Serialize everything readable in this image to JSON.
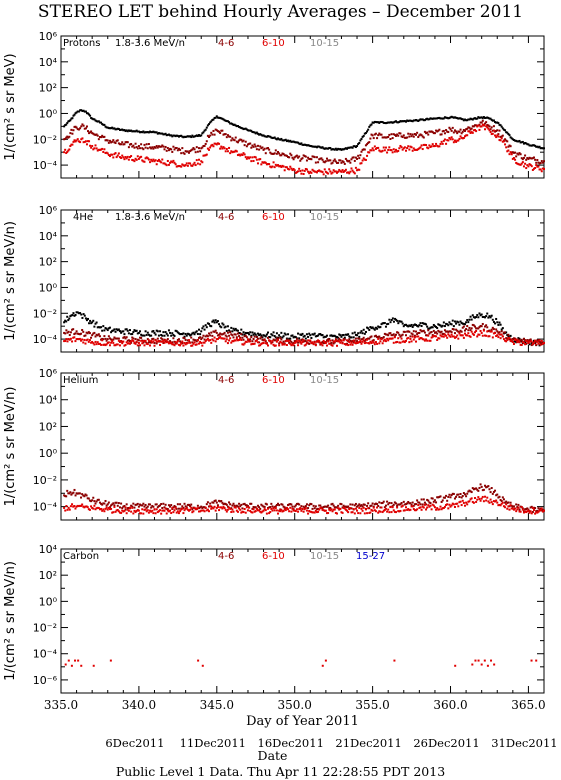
{
  "title": "STEREO LET behind Hourly Averages – December 2011",
  "footer": "Public Level 1 Data. Thu Apr 11 22:28:55 PDT 2013",
  "colors": {
    "lowest_energy": "#000000",
    "4-6": "#8b0000",
    "6-10": "#e00000",
    "10-15": "#888888",
    "15-27": "#0000cc"
  },
  "chart_data": [
    {
      "type": "scatter",
      "panel": "Protons",
      "ylabel": "1/(cm² s sr MeV)",
      "yscale": "log",
      "ylim": [
        1e-05,
        1000000
      ],
      "yticks": [
        "10⁻⁴",
        "10⁻²",
        "10⁰",
        "10²",
        "10⁴",
        "10⁶"
      ],
      "xlim": [
        335,
        366
      ],
      "legend": [
        "Protons",
        "1.8-3.6 MeV/n",
        "4-6",
        "6-10",
        "10-15"
      ],
      "series": [
        {
          "name": "1.8-3.6 MeV/n",
          "x": [
            335.2,
            335.6,
            336,
            336.3,
            336.6,
            337,
            337.5,
            338,
            339,
            340,
            341,
            342,
            343,
            344,
            344.5,
            345,
            345.5,
            346,
            347,
            348,
            349,
            350,
            351,
            352,
            353,
            354,
            355,
            356,
            357,
            358,
            359,
            360,
            360.5,
            361,
            361.5,
            362,
            362.5,
            363,
            363.5,
            364,
            365,
            366
          ],
          "y": [
            0.1,
            0.3,
            1.2,
            1.8,
            1.4,
            0.4,
            0.2,
            0.08,
            0.05,
            0.04,
            0.035,
            0.02,
            0.015,
            0.02,
            0.15,
            0.6,
            0.3,
            0.15,
            0.05,
            0.02,
            0.01,
            0.006,
            0.003,
            0.002,
            0.0015,
            0.003,
            0.2,
            0.2,
            0.25,
            0.3,
            0.4,
            0.5,
            0.4,
            0.3,
            0.4,
            0.5,
            0.4,
            0.2,
            0.05,
            0.01,
            0.004,
            0.002
          ]
        },
        {
          "name": "4-6",
          "x": [
            335.2,
            335.6,
            336,
            336.3,
            336.6,
            337,
            337.5,
            338,
            339,
            340,
            341,
            342,
            343,
            344,
            344.5,
            345,
            345.5,
            346,
            347,
            348,
            349,
            350,
            351,
            352,
            353,
            354,
            355,
            356,
            357,
            358,
            359,
            360,
            360.5,
            361,
            361.5,
            362,
            362.5,
            363,
            363.5,
            364,
            365,
            366
          ],
          "y": [
            0.01,
            0.03,
            0.08,
            0.1,
            0.07,
            0.03,
            0.015,
            0.008,
            0.004,
            0.003,
            0.0025,
            0.0018,
            0.0012,
            0.002,
            0.015,
            0.05,
            0.025,
            0.012,
            0.004,
            0.0015,
            0.0008,
            0.0004,
            0.0003,
            0.0002,
            0.00015,
            0.0003,
            0.02,
            0.015,
            0.02,
            0.02,
            0.03,
            0.06,
            0.04,
            0.06,
            0.1,
            0.2,
            0.1,
            0.05,
            0.01,
            0.001,
            0.0003,
            0.0002
          ]
        },
        {
          "name": "6-10",
          "x": [
            335.2,
            335.6,
            336,
            336.3,
            336.6,
            337,
            337.5,
            338,
            339,
            340,
            341,
            342,
            343,
            344,
            344.5,
            345,
            345.5,
            346,
            347,
            348,
            349,
            350,
            351,
            352,
            353,
            354,
            355,
            356,
            357,
            358,
            359,
            360,
            360.5,
            361,
            361.5,
            362,
            362.5,
            363,
            363.5,
            364,
            365,
            366
          ],
          "y": [
            0.001,
            0.003,
            0.008,
            0.01,
            0.007,
            0.003,
            0.0015,
            0.0008,
            0.0004,
            0.0003,
            0.0002,
            0.00015,
            0.0001,
            0.0002,
            0.0015,
            0.004,
            0.002,
            0.001,
            0.0004,
            0.00015,
            8e-05,
            4e-05,
            3e-05,
            3e-05,
            3e-05,
            4e-05,
            0.002,
            0.0015,
            0.002,
            0.002,
            0.003,
            0.01,
            0.008,
            0.02,
            0.05,
            0.1,
            0.05,
            0.02,
            0.004,
            0.0003,
            8e-05,
            5e-05
          ]
        }
      ]
    },
    {
      "type": "scatter",
      "panel": "4He",
      "ylabel": "1/(cm² s sr MeV/n)",
      "yscale": "log",
      "ylim": [
        1e-05,
        1000000
      ],
      "yticks": [
        "10⁻⁴",
        "10⁻²",
        "10⁰",
        "10²",
        "10⁴",
        "10⁶"
      ],
      "xlim": [
        335,
        366
      ],
      "legend": [
        "4He",
        "1.8-3.6 MeV/n",
        "4-6",
        "6-10",
        "10-15"
      ],
      "series": [
        {
          "name": "1.8-3.6 MeV/n",
          "x": [
            335.2,
            335.6,
            336,
            336.3,
            336.6,
            337,
            337.5,
            338,
            339,
            340,
            341,
            342,
            343,
            344,
            344.5,
            345,
            345.5,
            346,
            347,
            348,
            349,
            350,
            351,
            352,
            353,
            354,
            355,
            356,
            356.3,
            357,
            358,
            359,
            360,
            360.5,
            361,
            361.5,
            362,
            362.5,
            363,
            363.5,
            364,
            365,
            366
          ],
          "y": [
            0.002,
            0.006,
            0.012,
            0.008,
            0.004,
            0.002,
            0.0008,
            0.0005,
            0.0004,
            0.0003,
            0.0003,
            0.0003,
            0.00025,
            0.0004,
            0.0015,
            0.002,
            0.0008,
            0.0004,
            0.0003,
            0.0002,
            0.0002,
            0.00015,
            0.0002,
            0.00015,
            0.00015,
            0.0002,
            0.0008,
            0.0015,
            0.004,
            0.001,
            0.0012,
            0.001,
            0.0015,
            0.002,
            0.002,
            0.005,
            0.008,
            0.006,
            0.002,
            0.0003,
            0.0001,
            6e-05,
            5e-05
          ]
        },
        {
          "name": "4-6",
          "x": [
            335.2,
            336,
            337,
            338,
            340,
            342,
            344,
            345,
            346,
            348,
            350,
            352,
            354,
            356,
            358,
            360,
            361,
            362,
            363,
            364,
            365,
            366
          ],
          "y": [
            0.0003,
            0.0004,
            0.0002,
            0.0001,
            8e-05,
            7e-05,
            0.0001,
            0.0003,
            0.0002,
            8e-05,
            7e-05,
            6e-05,
            7e-05,
            0.0002,
            0.0003,
            0.0004,
            0.0006,
            0.001,
            0.0004,
            0.0001,
            6e-05,
            5e-05
          ]
        },
        {
          "name": "6-10",
          "x": [
            335.2,
            336,
            337,
            338,
            340,
            342,
            344,
            345,
            346,
            348,
            350,
            352,
            354,
            356,
            358,
            360,
            361,
            362,
            363,
            364,
            365,
            366
          ],
          "y": [
            7e-05,
            0.0001,
            6e-05,
            5e-05,
            5e-05,
            5e-05,
            5e-05,
            0.0001,
            7e-05,
            5e-05,
            5e-05,
            5e-05,
            5e-05,
            8e-05,
            0.0001,
            0.00015,
            0.0002,
            0.0003,
            0.0002,
            6e-05,
            5e-05,
            5e-05
          ]
        }
      ]
    },
    {
      "type": "scatter",
      "panel": "Helium",
      "ylabel": "1/(cm² s sr MeV/n)",
      "yscale": "log",
      "ylim": [
        1e-05,
        1000000
      ],
      "yticks": [
        "10⁻⁴",
        "10⁻²",
        "10⁰",
        "10²",
        "10⁴",
        "10⁶"
      ],
      "xlim": [
        335,
        366
      ],
      "legend": [
        "Helium",
        "4-6",
        "6-10",
        "10-15"
      ],
      "series": [
        {
          "name": "4-6",
          "x": [
            335.2,
            335.6,
            336,
            336.5,
            337,
            337.5,
            338,
            339,
            340,
            342,
            344,
            345,
            346,
            348,
            350,
            352,
            354,
            356,
            358,
            359,
            360,
            360.5,
            361,
            361.5,
            362,
            362.5,
            363,
            363.5,
            364,
            365,
            366
          ],
          "y": [
            0.0007,
            0.0012,
            0.001,
            0.0006,
            0.0003,
            0.0002,
            0.00015,
            0.0001,
            0.0001,
            0.0001,
            0.0001,
            0.0002,
            0.00012,
            0.0001,
            0.0001,
            0.0001,
            0.0001,
            0.00015,
            0.0002,
            0.0003,
            0.0005,
            0.0008,
            0.0006,
            0.002,
            0.003,
            0.002,
            0.0008,
            0.0002,
            0.0001,
            6e-05,
            5e-05
          ]
        },
        {
          "name": "6-10",
          "x": [
            335.2,
            336,
            337,
            338,
            340,
            342,
            344,
            345,
            346,
            348,
            350,
            352,
            354,
            356,
            358,
            360,
            361,
            362,
            363,
            364,
            365,
            366
          ],
          "y": [
            8e-05,
            0.0001,
            8e-05,
            6e-05,
            5e-05,
            5e-05,
            5e-05,
            8e-05,
            6e-05,
            5e-05,
            5e-05,
            5e-05,
            5e-05,
            6e-05,
            8e-05,
            0.0001,
            0.0002,
            0.0004,
            0.0002,
            7e-05,
            5e-05,
            5e-05
          ]
        }
      ]
    },
    {
      "type": "scatter",
      "panel": "Carbon",
      "ylabel": "1/(cm² s sr MeV/n)",
      "yscale": "log",
      "ylim": [
        1e-07,
        10000
      ],
      "yticks": [
        "10⁻⁶",
        "10⁻⁴",
        "10⁻²",
        "10⁰",
        "10²",
        "10⁴"
      ],
      "xlim": [
        335,
        366
      ],
      "legend": [
        "Carbon",
        "4-6",
        "6-10",
        "10-15",
        "15-27"
      ],
      "xlabel": "Day of Year 2011",
      "xticks": [
        "335.0",
        "340.0",
        "345.0",
        "350.0",
        "355.0",
        "360.0",
        "365.0"
      ],
      "date_xlabel": "Date",
      "date_ticks": [
        "6Dec2011",
        "11Dec2011",
        "16Dec2011",
        "21Dec2011",
        "26Dec2011",
        "31Dec2011"
      ],
      "series": [
        {
          "name": "6-10",
          "x": [
            335.3,
            335.5,
            335.7,
            335.9,
            336.1,
            336.3,
            337.1,
            338.2,
            343.8,
            344.1,
            351.8,
            352,
            356.4,
            360.3,
            361.4,
            361.6,
            361.8,
            362,
            362.2,
            362.4,
            362.6,
            362.8,
            365.2,
            365.5
          ],
          "y": [
            1.5e-05,
            3e-05,
            1.2e-05,
            3e-05,
            3e-05,
            1.2e-05,
            1.2e-05,
            3e-05,
            3e-05,
            1.2e-05,
            1.2e-05,
            3e-05,
            3e-05,
            1.2e-05,
            1.5e-05,
            3e-05,
            3e-05,
            1.5e-05,
            3e-05,
            1.2e-05,
            3e-05,
            1.5e-05,
            3e-05,
            3e-05
          ]
        }
      ]
    }
  ]
}
